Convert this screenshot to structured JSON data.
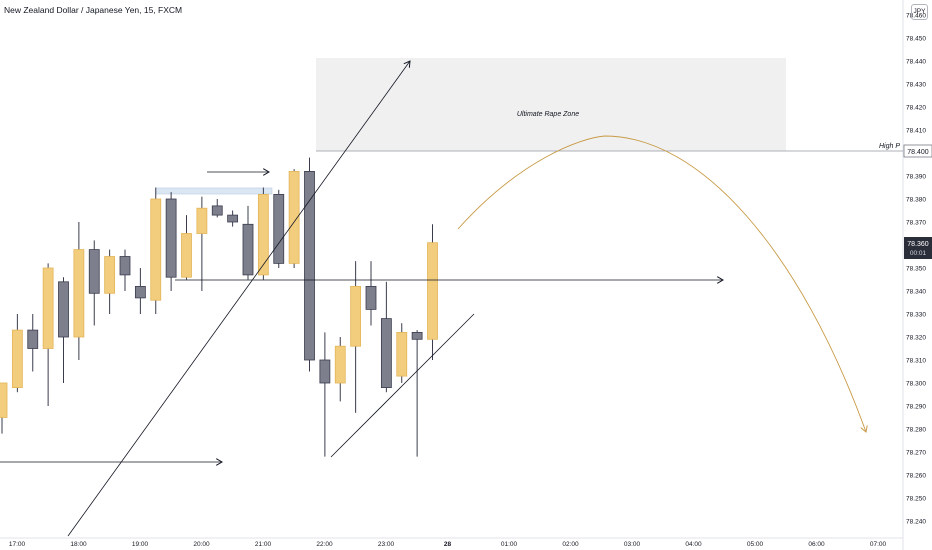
{
  "header": {
    "title": "New Zealand Dollar / Japanese Yen, 15, FXCM",
    "currency": "JPY"
  },
  "colors": {
    "bull": "#f3cd7e",
    "bull_border": "#e3b558",
    "bear": "#7e7f8c",
    "bear_border": "#3a3c4e",
    "wick": "#3a3c4e",
    "curve": "#c79a45",
    "zone_fill": "#f0f0f0",
    "line": "#787b86",
    "last_price_label": "#2a2e39"
  },
  "annotations": {
    "zone_label": "Ultimate Rape Zone",
    "high_label": "High P",
    "high_price": "78.400",
    "last_price": "78.360",
    "countdown": "00:01"
  },
  "chart_data": {
    "type": "candlestick",
    "symbol": "NZDJPY",
    "timeframe_minutes": 15,
    "ylim": [
      78.236,
      78.466
    ],
    "y_ticks": [
      "78.240",
      "78.250",
      "78.260",
      "78.270",
      "78.280",
      "78.290",
      "78.300",
      "78.310",
      "78.320",
      "78.330",
      "78.340",
      "78.350",
      "78.360",
      "78.370",
      "78.380",
      "78.390",
      "78.400",
      "78.410",
      "78.420",
      "78.430",
      "78.440",
      "78.450",
      "78.460"
    ],
    "x_ticks": [
      "17:00",
      "18:00",
      "19:00",
      "20:00",
      "21:00",
      "22:00",
      "23:00",
      "28",
      "01:00",
      "02:00",
      "03:00",
      "04:00",
      "05:00",
      "06:00",
      "07:00"
    ],
    "candles": [
      {
        "t": "17:00",
        "o": 78.285,
        "h": 78.298,
        "l": 78.278,
        "c": 78.3
      },
      {
        "t": "17:15",
        "o": 78.298,
        "h": 78.33,
        "l": 78.296,
        "c": 78.323
      },
      {
        "t": "17:30",
        "o": 78.323,
        "h": 78.33,
        "l": 78.305,
        "c": 78.315
      },
      {
        "t": "17:45",
        "o": 78.315,
        "h": 78.352,
        "l": 78.29,
        "c": 78.35
      },
      {
        "t": "18:00",
        "o": 78.344,
        "h": 78.346,
        "l": 78.3,
        "c": 78.32
      },
      {
        "t": "18:15",
        "o": 78.32,
        "h": 78.37,
        "l": 78.31,
        "c": 78.358
      },
      {
        "t": "18:30",
        "o": 78.358,
        "h": 78.362,
        "l": 78.325,
        "c": 78.339
      },
      {
        "t": "18:45",
        "o": 78.339,
        "h": 78.358,
        "l": 78.33,
        "c": 78.355
      },
      {
        "t": "19:00",
        "o": 78.355,
        "h": 78.358,
        "l": 78.34,
        "c": 78.347
      },
      {
        "t": "19:15",
        "o": 78.342,
        "h": 78.35,
        "l": 78.33,
        "c": 78.337
      },
      {
        "t": "19:30",
        "o": 78.336,
        "h": 78.385,
        "l": 78.33,
        "c": 78.38
      },
      {
        "t": "19:45",
        "o": 78.38,
        "h": 78.383,
        "l": 78.34,
        "c": 78.346
      },
      {
        "t": "20:00",
        "o": 78.346,
        "h": 78.373,
        "l": 78.345,
        "c": 78.365
      },
      {
        "t": "20:15",
        "o": 78.365,
        "h": 78.381,
        "l": 78.34,
        "c": 78.376
      },
      {
        "t": "20:30",
        "o": 78.377,
        "h": 78.38,
        "l": 78.372,
        "c": 78.373
      },
      {
        "t": "20:45",
        "o": 78.373,
        "h": 78.375,
        "l": 78.368,
        "c": 78.37
      },
      {
        "t": "21:00",
        "o": 78.369,
        "h": 78.377,
        "l": 78.345,
        "c": 78.347
      },
      {
        "t": "21:15",
        "o": 78.347,
        "h": 78.385,
        "l": 78.345,
        "c": 78.382
      },
      {
        "t": "21:30",
        "o": 78.382,
        "h": 78.384,
        "l": 78.35,
        "c": 78.352
      },
      {
        "t": "21:45",
        "o": 78.352,
        "h": 78.393,
        "l": 78.35,
        "c": 78.392
      },
      {
        "t": "22:00",
        "o": 78.392,
        "h": 78.398,
        "l": 78.305,
        "c": 78.31
      },
      {
        "t": "22:15",
        "o": 78.31,
        "h": 78.322,
        "l": 78.268,
        "c": 78.3
      },
      {
        "t": "22:30",
        "o": 78.3,
        "h": 78.32,
        "l": 78.292,
        "c": 78.316
      },
      {
        "t": "22:45",
        "o": 78.316,
        "h": 78.353,
        "l": 78.287,
        "c": 78.342
      },
      {
        "t": "23:00",
        "o": 78.342,
        "h": 78.353,
        "l": 78.325,
        "c": 78.332
      },
      {
        "t": "23:15",
        "o": 78.328,
        "h": 78.344,
        "l": 78.296,
        "c": 78.298
      },
      {
        "t": "23:30",
        "o": 78.303,
        "h": 78.326,
        "l": 78.3,
        "c": 78.322
      },
      {
        "t": "23:45",
        "o": 78.322,
        "h": 78.323,
        "l": 78.268,
        "c": 78.319
      },
      {
        "t": "00:00",
        "o": 78.319,
        "h": 78.369,
        "l": 78.31,
        "c": 78.361
      }
    ]
  }
}
